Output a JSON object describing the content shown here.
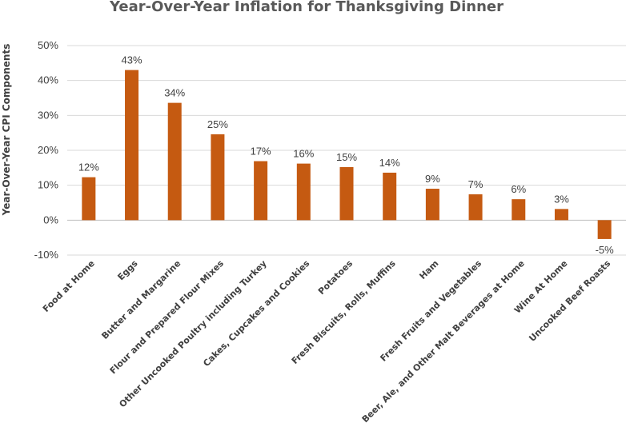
{
  "chart_data": {
    "type": "bar",
    "title": "Year-Over-Year Inflation for Thanksgiving Dinner",
    "xlabel": "",
    "ylabel": "Year-Over-Year CPI Components",
    "ylim": [
      -10,
      50
    ],
    "yticks": [
      50,
      40,
      30,
      20,
      10,
      0,
      -10
    ],
    "ytick_labels": [
      "50%",
      "40%",
      "30%",
      "20%",
      "10%",
      "0%",
      "-10%"
    ],
    "grid": true,
    "legend": "none",
    "bar_color": "#C55A11",
    "categories": [
      "Food at Home",
      "Eggs",
      "Butter and Margarine",
      "Flour and Prepared Flour Mixes",
      "Other Uncooked Poultry including Turkey",
      "Cakes, Cupcakes and Cookies",
      "Potatoes",
      "Fresh Biscuits, Rolls, Muffins",
      "Ham",
      "Fresh Fruits and Vegetables",
      "Beer, Ale, and Other Malt Beverages at Home",
      "Wine At Home",
      "Uncooked Beef Roasts"
    ],
    "values": [
      12.3,
      43,
      33.6,
      24.6,
      16.9,
      16.2,
      15.2,
      13.6,
      9.0,
      7.4,
      6.0,
      3.2,
      -5.4
    ],
    "data_labels": [
      "12%",
      "43%",
      "34%",
      "25%",
      "17%",
      "16%",
      "15%",
      "14%",
      "9%",
      "7%",
      "6%",
      "3%",
      "-5%"
    ]
  }
}
